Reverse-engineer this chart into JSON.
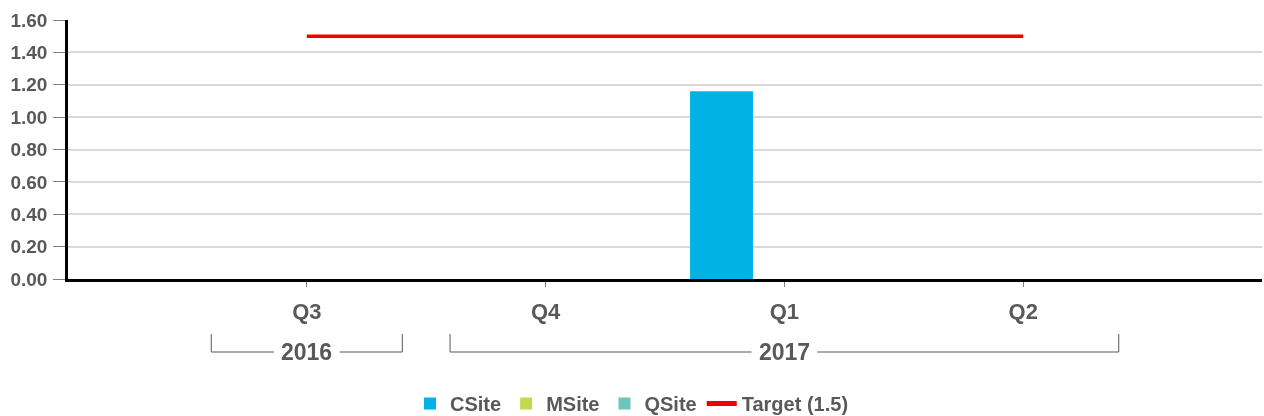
{
  "chart_data": {
    "type": "bar",
    "categories": [
      "Q3",
      "Q4",
      "Q1",
      "Q2"
    ],
    "series": [
      {
        "name": "CSite",
        "color": "#00b2e5",
        "values": [
          null,
          null,
          1.16,
          null
        ]
      },
      {
        "name": "MSite",
        "color": "#c4d84f",
        "values": [
          null,
          null,
          null,
          null
        ]
      },
      {
        "name": "QSite",
        "color": "#6cc6bc",
        "values": [
          null,
          null,
          null,
          null
        ]
      },
      {
        "name": "Target (1.5)",
        "type": "line",
        "color": "#f00000",
        "values": [
          1.5,
          1.5,
          1.5,
          1.5
        ]
      }
    ],
    "ylim": [
      0,
      1.6
    ],
    "yticks": [
      {
        "value": 0,
        "label": "0.00"
      },
      {
        "value": 0.2,
        "label": "0.20"
      },
      {
        "value": 0.4,
        "label": "0.40"
      },
      {
        "value": 0.6,
        "label": "0.60"
      },
      {
        "value": 0.8,
        "label": "0.80"
      },
      {
        "value": 1.0,
        "label": "1.00"
      },
      {
        "value": 1.2,
        "label": "1.20"
      },
      {
        "value": 1.4,
        "label": "1.40"
      },
      {
        "value": 1.6,
        "label": "1.60"
      }
    ],
    "grid": "y",
    "legend": "bottom",
    "annotations": [
      "2016",
      "2017"
    ]
  }
}
